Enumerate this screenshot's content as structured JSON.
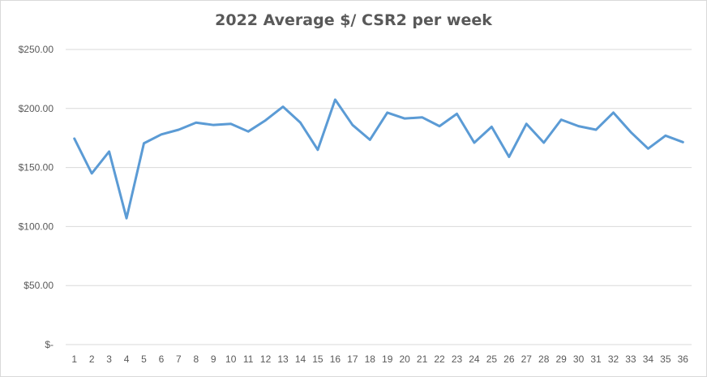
{
  "chart_data": {
    "type": "line",
    "title": "2022 Average $/ CSR2 per week",
    "xlabel": "",
    "ylabel": "",
    "ylim": [
      0,
      250
    ],
    "y_ticks": [
      {
        "value": 250,
        "label": "$250.00"
      },
      {
        "value": 200,
        "label": "$200.00"
      },
      {
        "value": 150,
        "label": "$150.00"
      },
      {
        "value": 100,
        "label": "$100.00"
      },
      {
        "value": 50,
        "label": "$50.00"
      },
      {
        "value": 0,
        "label": "$-"
      }
    ],
    "grid": true,
    "legend": "none",
    "color": "#5b9bd5",
    "categories": [
      "1",
      "2",
      "3",
      "4",
      "5",
      "6",
      "7",
      "8",
      "9",
      "10",
      "11",
      "12",
      "13",
      "14",
      "15",
      "16",
      "17",
      "18",
      "19",
      "20",
      "21",
      "22",
      "23",
      "24",
      "25",
      "26",
      "27",
      "28",
      "29",
      "30",
      "31",
      "32",
      "33",
      "34",
      "35",
      "36"
    ],
    "values": [
      174.5,
      145,
      163.5,
      107,
      170.5,
      178,
      182,
      188,
      186,
      187,
      180.5,
      190,
      201.5,
      188,
      165,
      207.5,
      186,
      173.5,
      196.5,
      191.5,
      192.5,
      185,
      195.5,
      171,
      184.5,
      159,
      187,
      171,
      190.5,
      185,
      182,
      196.5,
      180,
      166,
      177,
      171.5
    ]
  }
}
